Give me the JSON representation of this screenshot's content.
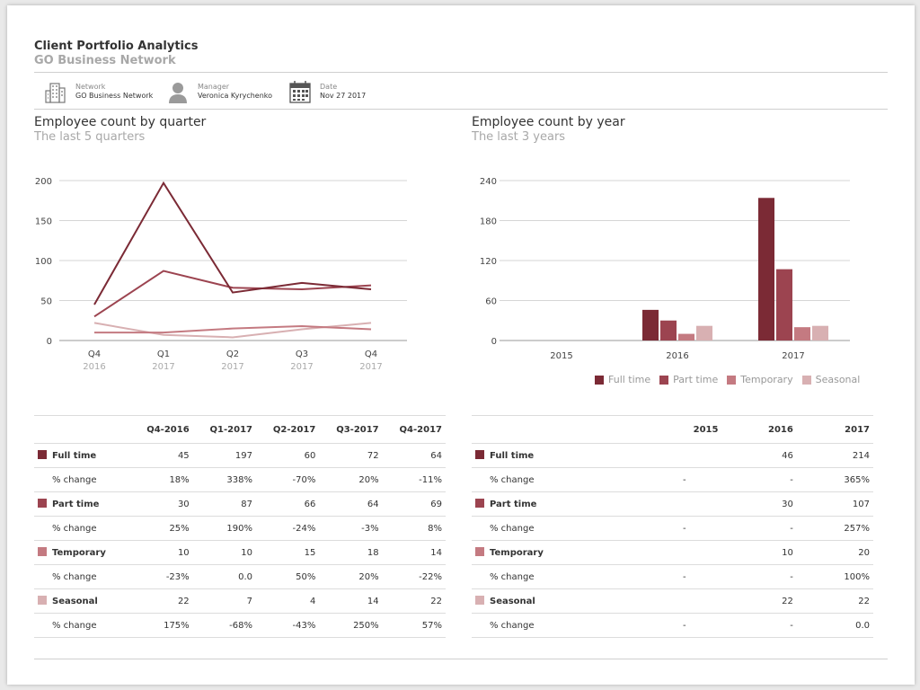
{
  "header": {
    "title": "Client Portfolio Analytics",
    "subtitle": "GO Business Network",
    "network_label": "Network",
    "network_value": "GO Business Network",
    "manager_label": "Manager",
    "manager_value": "Veronica Kyrychenko",
    "date_label": "Date",
    "date_value": "Nov 27 2017"
  },
  "colors": {
    "full_time": "#7b2a35",
    "part_time": "#9c4450",
    "temporary": "#c47a81",
    "seasonal": "#d8b0b2"
  },
  "sections": {
    "quarter_title": "Employee count by quarter",
    "quarter_sub": "The last 5 quarters",
    "year_title": "Employee count by year",
    "year_sub": "The last 3 years"
  },
  "legend": [
    "Full time",
    "Part time",
    "Temporary",
    "Seasonal"
  ],
  "chart_data": [
    {
      "type": "line",
      "title": "Employee count by quarter",
      "categories": [
        [
          "Q4",
          "2016"
        ],
        [
          "Q1",
          "2017"
        ],
        [
          "Q2",
          "2017"
        ],
        [
          "Q3",
          "2017"
        ],
        [
          "Q4",
          "2017"
        ]
      ],
      "ylim": [
        0,
        200
      ],
      "yticks": [
        0,
        50,
        100,
        150,
        200
      ],
      "series": [
        {
          "name": "Full time",
          "values": [
            45,
            197,
            60,
            72,
            64
          ]
        },
        {
          "name": "Part time",
          "values": [
            30,
            87,
            66,
            64,
            69
          ]
        },
        {
          "name": "Temporary",
          "values": [
            10,
            10,
            15,
            18,
            14
          ]
        },
        {
          "name": "Seasonal",
          "values": [
            22,
            7,
            4,
            14,
            22
          ]
        }
      ]
    },
    {
      "type": "bar",
      "title": "Employee count by year",
      "categories": [
        "2015",
        "2016",
        "2017"
      ],
      "ylim": [
        0,
        240
      ],
      "yticks": [
        0,
        60,
        120,
        180,
        240
      ],
      "series": [
        {
          "name": "Full time",
          "values": [
            0,
            46,
            214
          ]
        },
        {
          "name": "Part time",
          "values": [
            0,
            30,
            107
          ]
        },
        {
          "name": "Temporary",
          "values": [
            0,
            10,
            20
          ]
        },
        {
          "name": "Seasonal",
          "values": [
            0,
            22,
            22
          ]
        }
      ]
    }
  ],
  "quarter_table": {
    "headers": [
      "Q4-2016",
      "Q1-2017",
      "Q2-2017",
      "Q3-2017",
      "Q4-2017"
    ],
    "rows": [
      {
        "label": "Full time",
        "main": true,
        "values": [
          "45",
          "197",
          "60",
          "72",
          "64"
        ]
      },
      {
        "label": "% change",
        "main": false,
        "values": [
          "18%",
          "338%",
          "-70%",
          "20%",
          "-11%"
        ]
      },
      {
        "label": "Part time",
        "main": true,
        "values": [
          "30",
          "87",
          "66",
          "64",
          "69"
        ]
      },
      {
        "label": "% change",
        "main": false,
        "values": [
          "25%",
          "190%",
          "-24%",
          "-3%",
          "8%"
        ]
      },
      {
        "label": "Temporary",
        "main": true,
        "values": [
          "10",
          "10",
          "15",
          "18",
          "14"
        ]
      },
      {
        "label": "% change",
        "main": false,
        "values": [
          "-23%",
          "0.0",
          "50%",
          "20%",
          "-22%"
        ]
      },
      {
        "label": "Seasonal",
        "main": true,
        "values": [
          "22",
          "7",
          "4",
          "14",
          "22"
        ]
      },
      {
        "label": "% change",
        "main": false,
        "values": [
          "175%",
          "-68%",
          "-43%",
          "250%",
          "57%"
        ]
      }
    ]
  },
  "year_table": {
    "headers": [
      "2015",
      "2016",
      "2017"
    ],
    "rows": [
      {
        "label": "Full time",
        "main": true,
        "values": [
          "",
          "46",
          "214"
        ]
      },
      {
        "label": "% change",
        "main": false,
        "values": [
          "-",
          "-",
          "365%"
        ]
      },
      {
        "label": "Part time",
        "main": true,
        "values": [
          "",
          "30",
          "107"
        ]
      },
      {
        "label": "% change",
        "main": false,
        "values": [
          "-",
          "-",
          "257%"
        ]
      },
      {
        "label": "Temporary",
        "main": true,
        "values": [
          "",
          "10",
          "20"
        ]
      },
      {
        "label": "% change",
        "main": false,
        "values": [
          "-",
          "-",
          "100%"
        ]
      },
      {
        "label": "Seasonal",
        "main": true,
        "values": [
          "",
          "22",
          "22"
        ]
      },
      {
        "label": "% change",
        "main": false,
        "values": [
          "-",
          "-",
          "0.0"
        ]
      }
    ]
  }
}
